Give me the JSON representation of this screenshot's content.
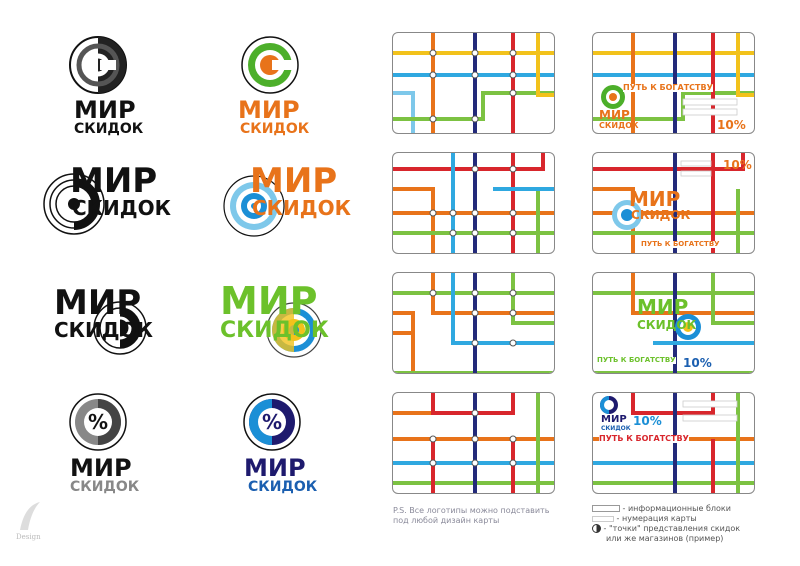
{
  "logos": [
    {
      "word1": "МИР",
      "word2": "СКИДОК",
      "word1_color": "#111111",
      "word2_color": "#111111",
      "icon": "c-target-icon",
      "icon_color": "#222222"
    },
    {
      "word1": "МИР",
      "word2": "СКИДОК",
      "word1_color": "#e8731a",
      "word2_color": "#e8731a",
      "icon": "c-target-icon",
      "icon_color": "#4caf2a"
    },
    {
      "word1": "МИР",
      "word2": "СКИДОК",
      "word1_color": "#111111",
      "word2_color": "#111111",
      "icon": "target-icon",
      "icon_color": "#111111"
    },
    {
      "word1": "МИР",
      "word2": "СКИДОК",
      "word1_color": "#e8731a",
      "word2_color": "#e8731a",
      "icon": "target-icon",
      "icon_color": "#1b8fd6"
    },
    {
      "word1": "МИР",
      "word2": "СКИДОК",
      "word1_color": "#111111",
      "word2_color": "#111111",
      "icon": "target-icon",
      "icon_color": "#555555"
    },
    {
      "word1": "МИР",
      "word2": "СКИДОК",
      "word1_color": "#6cc12b",
      "word2_color": "#6cc12b",
      "icon": "target-icon",
      "icon_color": "#1b8fd6"
    },
    {
      "word1": "МИР",
      "word2": "СКИДОК",
      "word1_color": "#111111",
      "word2_color": "#888888",
      "icon": "percent-icon",
      "icon_color": "#444444"
    },
    {
      "word1": "МИР",
      "word2": "СКИДОК",
      "word1_color": "#1e1a6e",
      "word2_color": "#1b5fb0",
      "icon": "percent-icon",
      "icon_color": "#1b8fd6"
    }
  ],
  "cards": [
    {
      "variant": 1
    },
    {
      "variant": 1,
      "tagline": "ПУТЬ К БОГАТСТВУ",
      "word1": "МИР",
      "word2": "СКИДОК",
      "discount": "10%"
    },
    {
      "variant": 2
    },
    {
      "variant": 2,
      "tagline": "ПУТЬ К БОГАТСТВУ",
      "word1": "МИР",
      "word2": "СКИДОК",
      "discount": "10%"
    },
    {
      "variant": 3
    },
    {
      "variant": 3,
      "tagline": "ПУТЬ К БОГАТСТВУ",
      "word1": "МИР",
      "word2": "СКИДОК",
      "discount": "10%"
    },
    {
      "variant": 4
    },
    {
      "variant": 4,
      "tagline": "ПУТЬ К БОГАТСТВУ",
      "word1": "МИР",
      "word2": "СКИДОК",
      "discount": "10%"
    }
  ],
  "note": {
    "line1": "P.S. Все логотипы можно подставить",
    "line2": "под любой дизайн карты"
  },
  "legend": {
    "info_blocks": "- информационные блоки",
    "card_number": "- нумерация карты",
    "points": "- \"точки\" представления скидок",
    "points2": "или же магазинов (пример)"
  },
  "watermark": "Design",
  "colors": {
    "yellow": "#f2c21b",
    "blue": "#2fa8e0",
    "green": "#7cc242",
    "red": "#d8262c",
    "navy": "#232a7a",
    "orange": "#e8731a",
    "lightblue": "#7ec8ea",
    "purple": "#3a2a8a"
  }
}
